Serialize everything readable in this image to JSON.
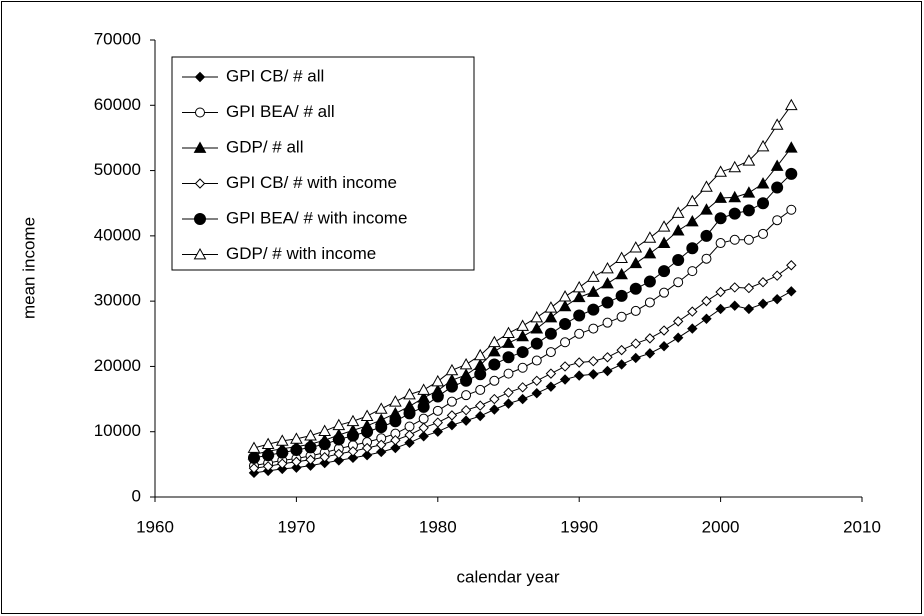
{
  "chart_data": {
    "type": "line",
    "x_label": "calendar year",
    "y_label": "mean income",
    "x": [
      1967,
      1968,
      1969,
      1970,
      1971,
      1972,
      1973,
      1974,
      1975,
      1976,
      1977,
      1978,
      1979,
      1980,
      1981,
      1982,
      1983,
      1984,
      1985,
      1986,
      1987,
      1988,
      1989,
      1990,
      1991,
      1992,
      1993,
      1994,
      1995,
      1996,
      1997,
      1998,
      1999,
      2000,
      2001,
      2002,
      2003,
      2004,
      2005
    ],
    "series": [
      {
        "name": "GPI CB/ # all",
        "color": "#000000",
        "marker": "diamond-filled",
        "values": [
          3700,
          4000,
          4300,
          4500,
          4800,
          5200,
          5600,
          6000,
          6400,
          6900,
          7500,
          8300,
          9300,
          10000,
          11000,
          11700,
          12400,
          13400,
          14300,
          15000,
          15900,
          16900,
          18000,
          18600,
          18800,
          19300,
          20300,
          21300,
          22000,
          23100,
          24400,
          25800,
          27300,
          28800,
          29300,
          28800,
          29600,
          30300,
          31500
        ]
      },
      {
        "name": "GPI BEA/ # all",
        "color": "#000000",
        "marker": "circle-open",
        "values": [
          4800,
          5200,
          5600,
          5900,
          6300,
          6800,
          7400,
          7900,
          8400,
          9000,
          9700,
          10800,
          12000,
          13200,
          14600,
          15600,
          16400,
          17800,
          18900,
          19800,
          20900,
          22200,
          23700,
          25000,
          25800,
          26700,
          27600,
          28500,
          29800,
          31300,
          32900,
          34600,
          36500,
          38900,
          39400,
          39400,
          40300,
          42400,
          44000
        ]
      },
      {
        "name": "GDP/ # all",
        "color": "#000000",
        "marker": "triangle-filled",
        "values": [
          6500,
          7000,
          7400,
          7700,
          8100,
          8700,
          9500,
          10200,
          10900,
          11800,
          12800,
          13900,
          15200,
          16300,
          17900,
          18700,
          20200,
          22300,
          23600,
          24600,
          25800,
          27500,
          29200,
          30600,
          31400,
          32700,
          34100,
          35800,
          37300,
          38900,
          40800,
          42200,
          44000,
          45800,
          45900,
          46600,
          48000,
          50700,
          53500
        ]
      },
      {
        "name": "GPI CB/ # with income",
        "color": "#000000",
        "marker": "diamond-open",
        "values": [
          4400,
          4700,
          5100,
          5400,
          5700,
          6100,
          6600,
          7000,
          7500,
          8000,
          8700,
          9500,
          10600,
          11400,
          12500,
          13300,
          14000,
          15000,
          16000,
          16800,
          17800,
          18900,
          20000,
          20600,
          20800,
          21400,
          22500,
          23500,
          24300,
          25500,
          26900,
          28400,
          30000,
          31400,
          32100,
          32000,
          32900,
          33900,
          35500
        ]
      },
      {
        "name": "GPI BEA/ # with income",
        "color": "#000000",
        "marker": "circle-filled",
        "values": [
          6000,
          6400,
          6800,
          7200,
          7600,
          8100,
          8800,
          9400,
          10000,
          10700,
          11600,
          12800,
          13800,
          15400,
          16900,
          17800,
          18800,
          20300,
          21400,
          22200,
          23500,
          25000,
          26500,
          27800,
          28700,
          29800,
          30800,
          31900,
          33000,
          34600,
          36300,
          38100,
          40000,
          42700,
          43400,
          43900,
          45000,
          47400,
          49500
        ]
      },
      {
        "name": "GDP/ # with income",
        "color": "#000000",
        "marker": "triangle-open",
        "values": [
          7500,
          8100,
          8600,
          8900,
          9400,
          10100,
          11000,
          11600,
          12400,
          13500,
          14600,
          15700,
          16400,
          17700,
          19400,
          20300,
          21700,
          23700,
          25100,
          26200,
          27500,
          29000,
          30700,
          32100,
          33700,
          35000,
          36600,
          38200,
          39700,
          41400,
          43500,
          45300,
          47500,
          49800,
          50500,
          51500,
          53700,
          57000,
          60000
        ]
      }
    ],
    "xlim": [
      1960,
      2010
    ],
    "xticks": [
      1960,
      1970,
      1980,
      1990,
      2000,
      2010
    ],
    "ylim": [
      0,
      70000
    ],
    "yticks": [
      0,
      10000,
      20000,
      30000,
      40000,
      50000,
      60000,
      70000
    ],
    "grid": false,
    "legend": "top-left"
  }
}
